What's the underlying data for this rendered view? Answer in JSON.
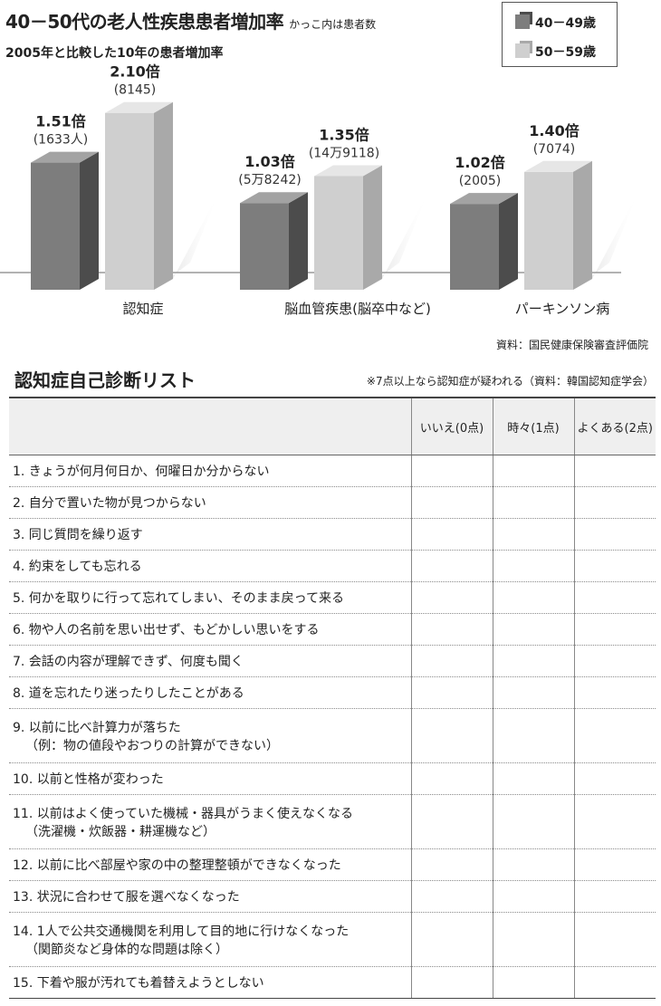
{
  "header": {
    "title": "40－50代の老人性疾患患者増加率",
    "title_note": "かっこ内は患者数",
    "subtitle": "2005年と比較した10年の患者増加率"
  },
  "legend": [
    {
      "label": "40－49歳",
      "color": "#7d7d7d"
    },
    {
      "label": "50－59歳",
      "color": "#cfcfcf"
    }
  ],
  "chart_data": {
    "type": "bar",
    "title": "40－50代の老人性疾患患者増加率",
    "subtitle": "2005年と比較した10年の患者増加率",
    "categories": [
      "認知症",
      "脳血管疾患(脳卒中など)",
      "パーキンソン病"
    ],
    "series": [
      {
        "name": "40－49歳",
        "values": [
          1.51,
          1.03,
          1.02
        ],
        "labels": [
          "1.51倍",
          "1.03倍",
          "1.02倍"
        ],
        "counts": [
          "(1633人)",
          "(5万8242)",
          "(2005)"
        ],
        "color": "#7d7d7d",
        "side_color": "#4c4c4c",
        "top_color": "#a3a3a3"
      },
      {
        "name": "50－59歳",
        "values": [
          2.1,
          1.35,
          1.4
        ],
        "labels": [
          "2.10倍",
          "1.35倍",
          "1.40倍"
        ],
        "counts": [
          "(8145)",
          "(14万9118)",
          "(7074)"
        ],
        "color": "#cfcfcf",
        "side_color": "#a9a9a9",
        "top_color": "#e6e6e6"
      }
    ],
    "ylim": [
      0,
      2.5
    ],
    "xlabel": "",
    "ylabel": ""
  },
  "source": "資料：国民健康保険審査評価院",
  "checklist": {
    "title": "認知症自己診断リスト",
    "note": "※7点以上なら認知症が疑われる（資料：韓国認知症学会）",
    "columns": [
      "いいえ(0点)",
      "時々(1点)",
      "よくある(2点)"
    ],
    "items": [
      {
        "line1": "1.  きょうが何月何日か、何曜日か分からない",
        "line2": ""
      },
      {
        "line1": "2.  自分で置いた物が見つからない",
        "line2": ""
      },
      {
        "line1": "3.  同じ質問を繰り返す",
        "line2": ""
      },
      {
        "line1": "4.  約束をしても忘れる",
        "line2": ""
      },
      {
        "line1": "5.  何かを取りに行って忘れてしまい、そのまま戻って来る",
        "line2": ""
      },
      {
        "line1": "6.  物や人の名前を思い出せず、もどかしい思いをする",
        "line2": ""
      },
      {
        "line1": "7.  会話の内容が理解できず、何度も聞く",
        "line2": ""
      },
      {
        "line1": "8.  道を忘れたり迷ったりしたことがある",
        "line2": ""
      },
      {
        "line1": "9.  以前に比べ計算力が落ちた",
        "line2": "（例：物の値段やおつりの計算ができない）"
      },
      {
        "line1": "10.  以前と性格が変わった",
        "line2": ""
      },
      {
        "line1": "11.  以前はよく使っていた機械・器具がうまく使えなくなる",
        "line2": "（洗濯機・炊飯器・耕運機など）"
      },
      {
        "line1": "12.  以前に比べ部屋や家の中の整理整頓ができなくなった",
        "line2": ""
      },
      {
        "line1": "13.  状況に合わせて服を選べなくなった",
        "line2": ""
      },
      {
        "line1": "14.  1人で公共交通機関を利用して目的地に行けなくなった",
        "line2": "（関節炎など身体的な問題は除く）"
      },
      {
        "line1": "15.  下着や服が汚れても着替えようとしない",
        "line2": ""
      }
    ]
  }
}
